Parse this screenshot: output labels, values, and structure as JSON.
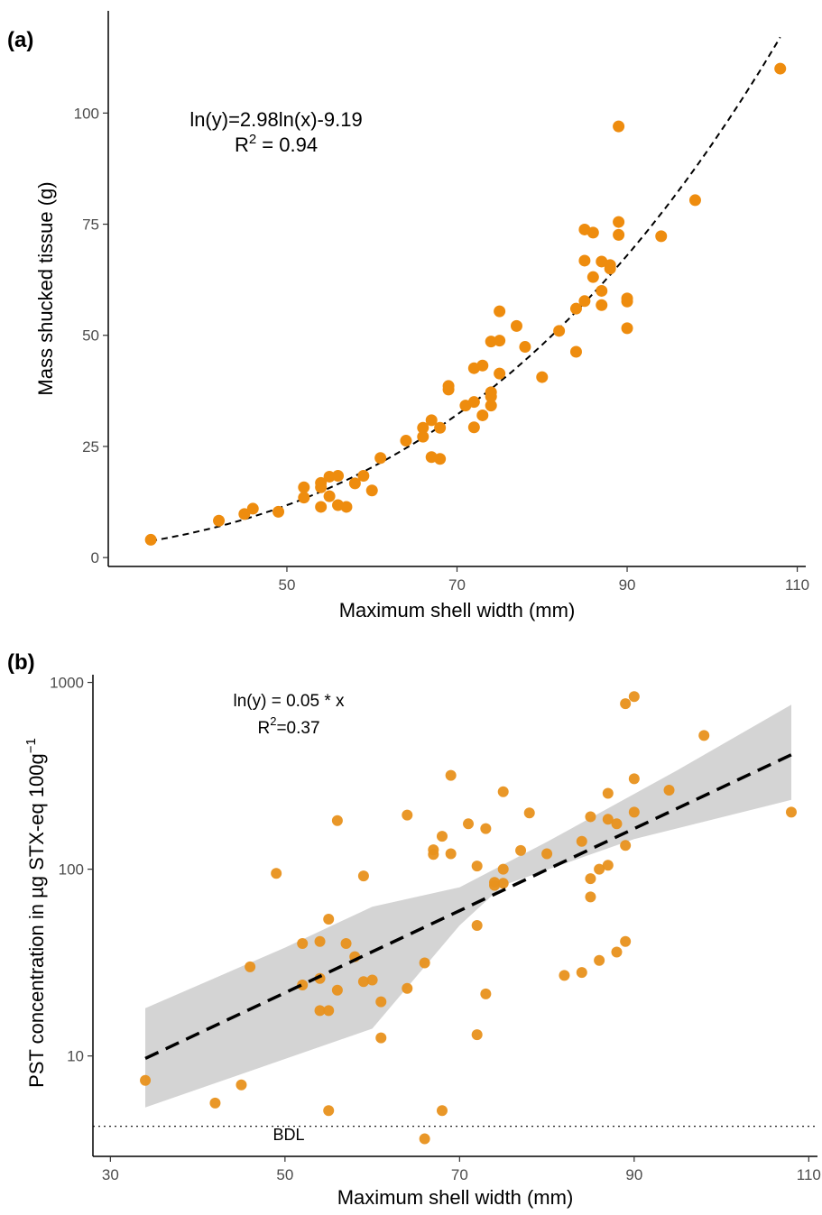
{
  "chart_data": [
    {
      "panel_label": "(a)",
      "type": "scatter",
      "xlabel": "Maximum shell width (mm)",
      "ylabel": "Mass shucked tissue (g)",
      "xlim": [
        29,
        111
      ],
      "ylim": [
        -2,
        123
      ],
      "x_ticks": [
        50,
        70,
        90,
        110
      ],
      "y_ticks": [
        0,
        25,
        50,
        75,
        100
      ],
      "annotation_line1": "ln(y)=2.98ln(x)-9.19",
      "annotation_r2_prefix": "R",
      "annotation_r2_sup": "2",
      "annotation_r2_suffix": " = 0.94",
      "grid": false,
      "point_color": "#EE8C0E",
      "fit": {
        "type": "power",
        "slope_ln": 2.98,
        "intercept_ln": -9.19,
        "style": "dashed",
        "x_range": [
          34,
          108
        ]
      },
      "points": [
        [
          34,
          4
        ],
        [
          42,
          8.3
        ],
        [
          45,
          9.8
        ],
        [
          46,
          11
        ],
        [
          49,
          10.3
        ],
        [
          52,
          13.5
        ],
        [
          52,
          15.8
        ],
        [
          54,
          11.4
        ],
        [
          54,
          15.8
        ],
        [
          54,
          16.8
        ],
        [
          55,
          13.8
        ],
        [
          55,
          18.2
        ],
        [
          56,
          18.4
        ],
        [
          56,
          11.8
        ],
        [
          57,
          11.4
        ],
        [
          58,
          16.7
        ],
        [
          59,
          18.4
        ],
        [
          60,
          15.1
        ],
        [
          61,
          22.4
        ],
        [
          64,
          26.3
        ],
        [
          66,
          27.2
        ],
        [
          66,
          29.2
        ],
        [
          67,
          30.9
        ],
        [
          67,
          22.6
        ],
        [
          68,
          22.2
        ],
        [
          68,
          29.2
        ],
        [
          69,
          37.8
        ],
        [
          69,
          38.6
        ],
        [
          71,
          34.2
        ],
        [
          72,
          29.3
        ],
        [
          72,
          35.0
        ],
        [
          72,
          42.6
        ],
        [
          73,
          32.0
        ],
        [
          73,
          43.2
        ],
        [
          74,
          34.2
        ],
        [
          74,
          36.2
        ],
        [
          74,
          37.2
        ],
        [
          74,
          48.6
        ],
        [
          75,
          41.4
        ],
        [
          75,
          48.8
        ],
        [
          75,
          55.4
        ],
        [
          77,
          52.1
        ],
        [
          78,
          47.4
        ],
        [
          80,
          40.6
        ],
        [
          82,
          51.0
        ],
        [
          84,
          46.3
        ],
        [
          84,
          56.0
        ],
        [
          85,
          57.7
        ],
        [
          85,
          66.8
        ],
        [
          85,
          73.8
        ],
        [
          86,
          73.1
        ],
        [
          86,
          63.1
        ],
        [
          87,
          56.8
        ],
        [
          87,
          60.0
        ],
        [
          87,
          66.6
        ],
        [
          88,
          65.0
        ],
        [
          88,
          65.8
        ],
        [
          89,
          72.6
        ],
        [
          89,
          75.5
        ],
        [
          89,
          97.0
        ],
        [
          90,
          51.6
        ],
        [
          90,
          57.6
        ],
        [
          90,
          58.3
        ],
        [
          94,
          72.3
        ],
        [
          98,
          80.4
        ],
        [
          108,
          110.0
        ]
      ]
    },
    {
      "panel_label": "(b)",
      "type": "scatter",
      "xlabel": "Maximum shell width (mm)",
      "ylabel_main": "PST concentration in µg STX-eq 100g",
      "ylabel_sup": "−1",
      "x_scale": "linear",
      "y_scale": "log",
      "xlim": [
        28,
        111
      ],
      "ylim": [
        2.9,
        1100
      ],
      "x_ticks": [
        30,
        50,
        70,
        90,
        110
      ],
      "y_ticks": [
        10,
        100,
        1000
      ],
      "annotation_line1": "ln(y) = 0.05 * x",
      "annotation_r2_prefix": "R",
      "annotation_r2_sup": "2",
      "annotation_r2_suffix": "=0.37",
      "bdl_label": "BDL",
      "bdl_value": 4.2,
      "grid": false,
      "point_color": "#E8911C",
      "fit": {
        "type": "exponential",
        "style": "dashed",
        "x_range": [
          34,
          108
        ],
        "line": [
          [
            34,
            9.7
          ],
          [
            108,
            410
          ]
        ],
        "ci_lower": [
          [
            34,
            5.3
          ],
          [
            60,
            14
          ],
          [
            70,
            50
          ],
          [
            75,
            82
          ],
          [
            90,
            145
          ],
          [
            108,
            235
          ]
        ],
        "ci_upper": [
          [
            34,
            18
          ],
          [
            50,
            38
          ],
          [
            60,
            63
          ],
          [
            70,
            80
          ],
          [
            80,
            140
          ],
          [
            95,
            340
          ],
          [
            108,
            760
          ]
        ]
      },
      "points": [
        [
          34,
          7.4
        ],
        [
          42,
          5.6
        ],
        [
          45,
          7.0
        ],
        [
          46,
          30
        ],
        [
          49,
          95
        ],
        [
          52,
          24
        ],
        [
          52,
          40
        ],
        [
          54,
          17.5
        ],
        [
          54,
          26
        ],
        [
          54,
          41
        ],
        [
          55,
          17.5
        ],
        [
          55,
          54
        ],
        [
          55,
          5.1
        ],
        [
          56,
          22.5
        ],
        [
          56,
          182
        ],
        [
          57,
          40
        ],
        [
          58,
          34
        ],
        [
          59,
          25
        ],
        [
          59,
          92
        ],
        [
          60,
          25.5
        ],
        [
          61,
          12.5
        ],
        [
          61,
          19.5
        ],
        [
          64,
          23
        ],
        [
          64,
          195
        ],
        [
          66,
          31.5
        ],
        [
          66,
          3.6
        ],
        [
          67,
          120
        ],
        [
          67,
          127
        ],
        [
          68,
          150
        ],
        [
          68,
          5.1
        ],
        [
          69,
          318
        ],
        [
          69,
          121
        ],
        [
          71,
          175
        ],
        [
          72,
          50
        ],
        [
          72,
          104
        ],
        [
          72,
          13
        ],
        [
          73,
          165
        ],
        [
          73,
          21.5
        ],
        [
          74,
          85
        ],
        [
          74,
          82
        ],
        [
          75,
          100
        ],
        [
          75,
          84
        ],
        [
          75,
          260
        ],
        [
          77,
          126
        ],
        [
          78,
          200
        ],
        [
          80,
          121
        ],
        [
          82,
          27
        ],
        [
          84,
          28
        ],
        [
          84,
          141
        ],
        [
          85,
          71
        ],
        [
          85,
          89
        ],
        [
          85,
          191
        ],
        [
          86,
          100
        ],
        [
          86,
          32.5
        ],
        [
          87,
          105
        ],
        [
          87,
          255
        ],
        [
          87,
          185
        ],
        [
          88,
          36
        ],
        [
          88,
          175
        ],
        [
          89,
          41
        ],
        [
          89,
          134
        ],
        [
          89,
          770
        ],
        [
          90,
          840
        ],
        [
          90,
          305
        ],
        [
          90,
          202
        ],
        [
          94,
          265
        ],
        [
          98,
          520
        ],
        [
          108,
          202
        ]
      ]
    }
  ]
}
